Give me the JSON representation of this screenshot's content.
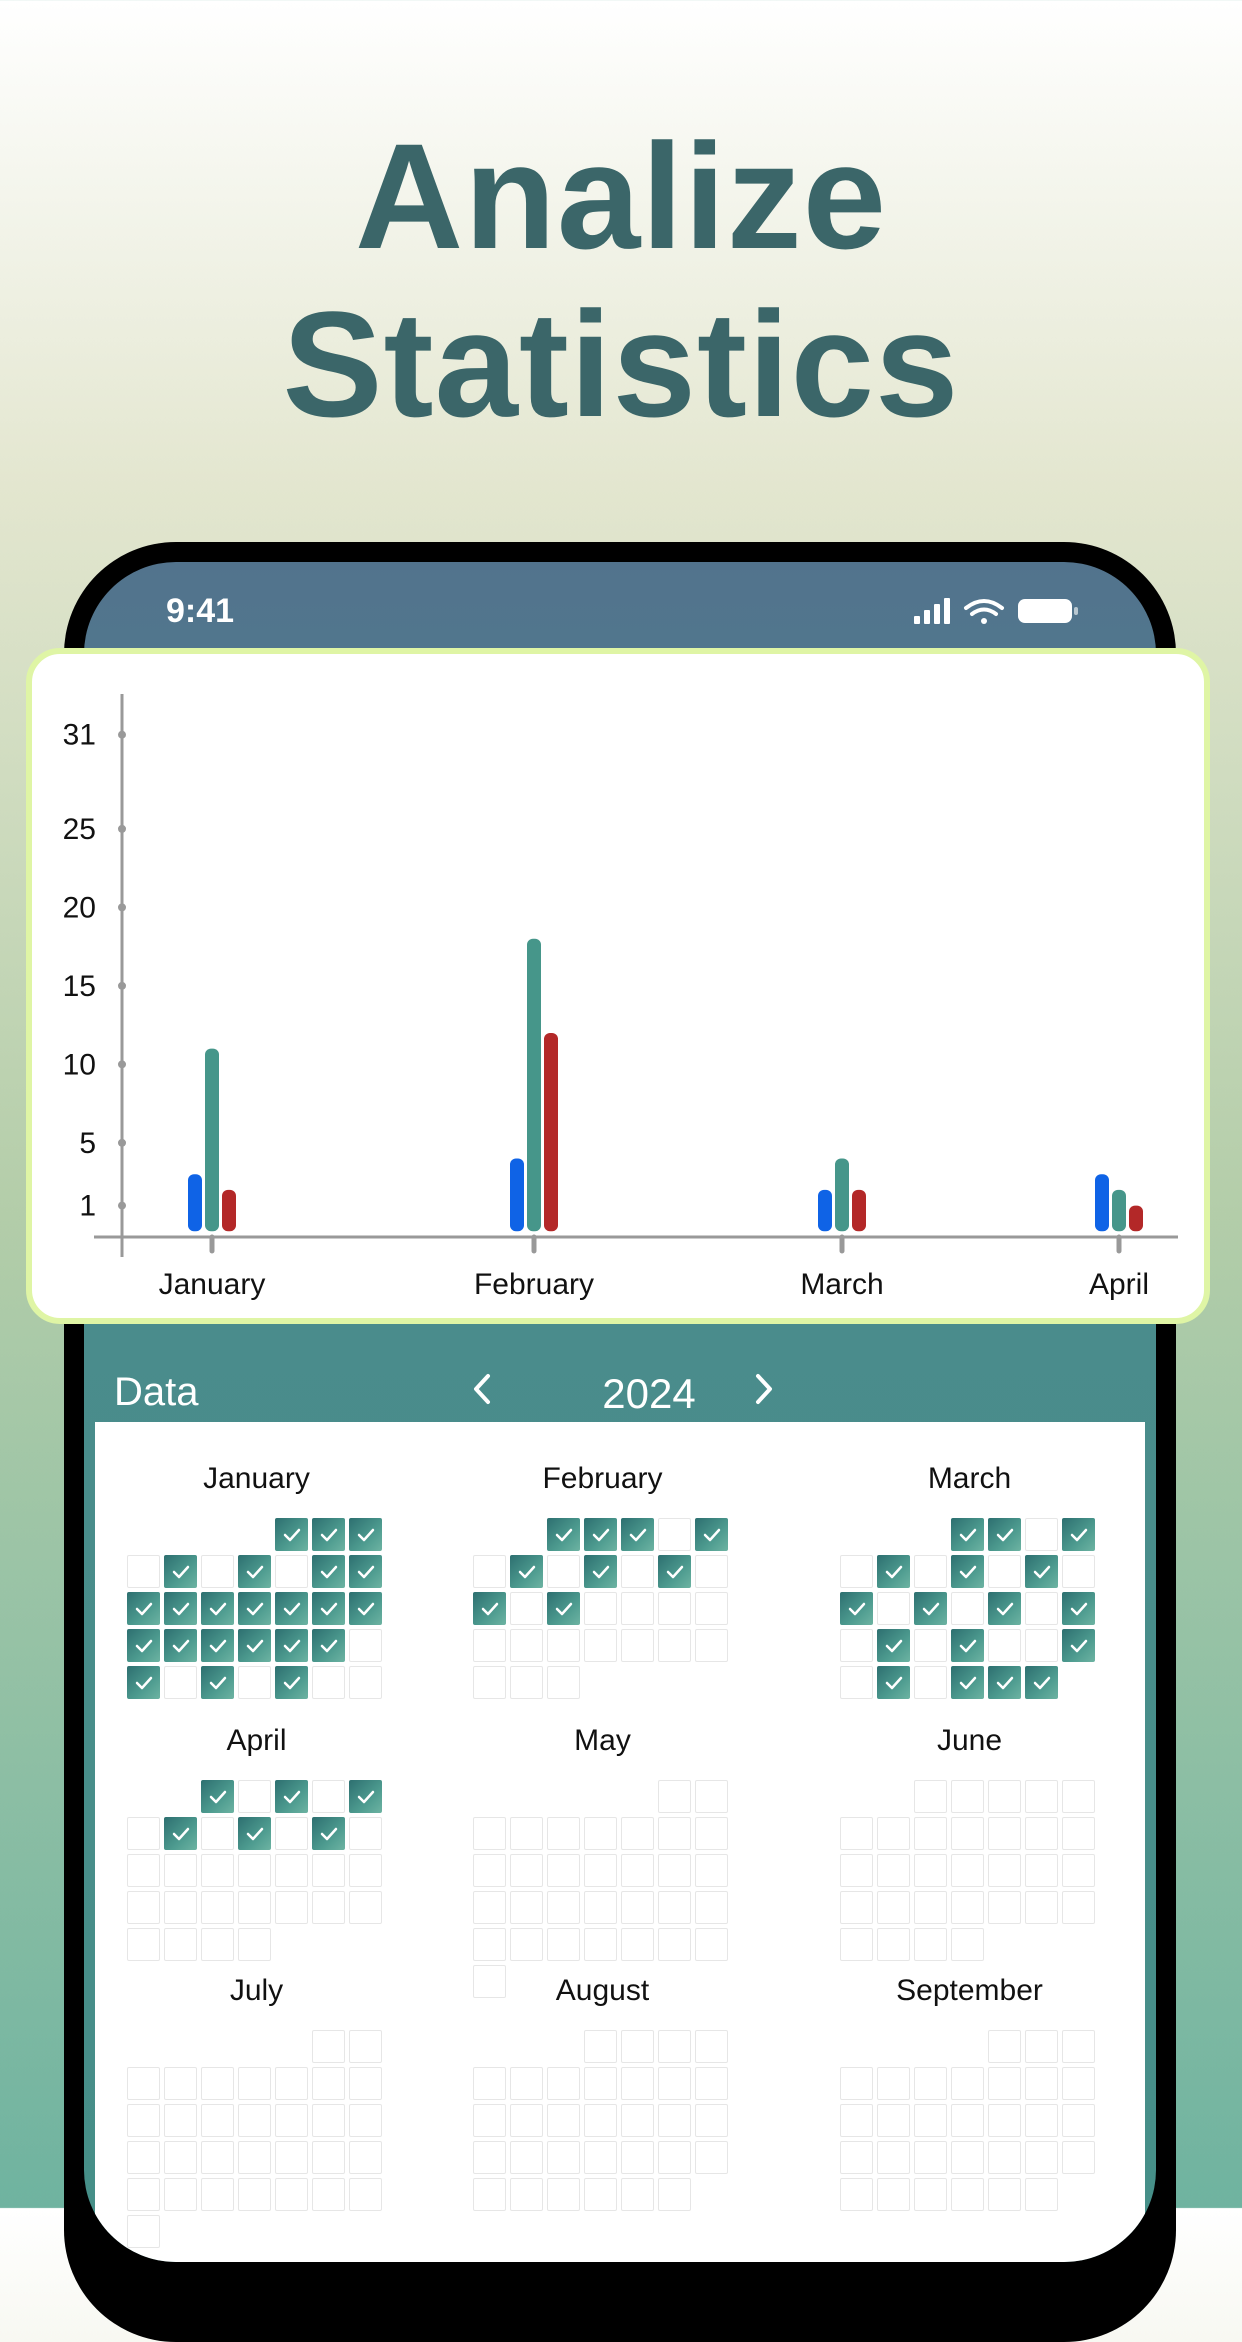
{
  "headline": {
    "line1": "Analize",
    "line2": "Statistics"
  },
  "status_bar": {
    "time": "9:41"
  },
  "data_section": {
    "title": "Data",
    "year": "2024",
    "prev_icon": "chevron-left-icon",
    "next_icon": "chevron-right-icon"
  },
  "colors": {
    "accent": "#3b6669",
    "bar_blue": "#0f63e6",
    "bar_teal": "#46968a",
    "bar_red": "#b32828",
    "card_border": "#dff5a5"
  },
  "chart_data": {
    "type": "bar",
    "categories": [
      "January",
      "February",
      "March",
      "April"
    ],
    "series": [
      {
        "color": "#0f63e6",
        "values": [
          3,
          4,
          2,
          3
        ]
      },
      {
        "color": "#46968a",
        "values": [
          11,
          18,
          4,
          2
        ]
      },
      {
        "color": "#b32828",
        "values": [
          2,
          12,
          2,
          1
        ]
      }
    ],
    "y_ticks": [
      "1",
      "5",
      "10",
      "15",
      "20",
      "25",
      "31"
    ],
    "y_tick_values": [
      1,
      5,
      10,
      15,
      20,
      25,
      31
    ],
    "ylim": [
      -1,
      32
    ],
    "grid": false
  },
  "calendar": {
    "months": [
      {
        "name": "January",
        "offset": 4,
        "days": 31,
        "checked": [
          1,
          2,
          3,
          5,
          7,
          9,
          10,
          11,
          12,
          13,
          14,
          15,
          16,
          17,
          18,
          19,
          20,
          21,
          22,
          23,
          25,
          27,
          29
        ]
      },
      {
        "name": "February",
        "offset": 2,
        "days": 29,
        "checked": [
          1,
          2,
          3,
          5,
          7,
          9,
          11,
          13,
          15
        ]
      },
      {
        "name": "March",
        "offset": 3,
        "days": 31,
        "checked": [
          1,
          2,
          4,
          6,
          8,
          10,
          12,
          14,
          16,
          18,
          20,
          22,
          25,
          27,
          29,
          30,
          31
        ]
      },
      {
        "name": "April",
        "offset": 2,
        "days": 30,
        "checked": [
          1,
          3,
          5,
          7,
          9,
          11
        ]
      },
      {
        "name": "May",
        "offset": 5,
        "days": 31,
        "checked": []
      },
      {
        "name": "June",
        "offset": 2,
        "days": 30,
        "checked": []
      },
      {
        "name": "July",
        "offset": 5,
        "days": 31,
        "checked": []
      },
      {
        "name": "August",
        "offset": 3,
        "days": 31,
        "checked": []
      },
      {
        "name": "September",
        "offset": 4,
        "days": 30,
        "checked": []
      }
    ]
  }
}
